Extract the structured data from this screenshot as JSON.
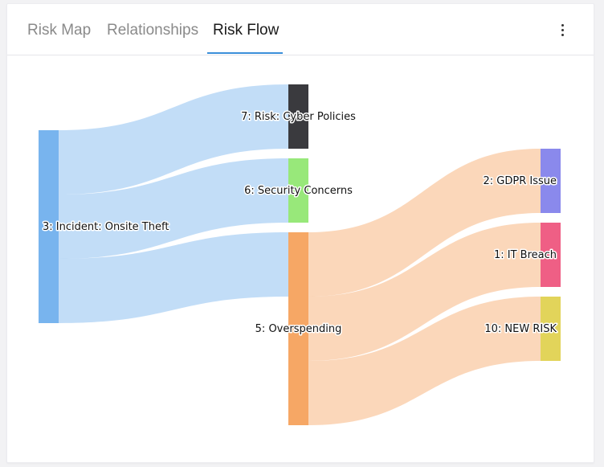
{
  "tabs": [
    {
      "label": "Risk Map"
    },
    {
      "label": "Relationships"
    },
    {
      "label": "Risk Flow"
    }
  ],
  "menu": {
    "icon": "more-vertical-icon"
  },
  "chart_data": {
    "type": "sankey",
    "nodes": [
      {
        "id": "3",
        "label": "3: Incident: Onsite Theft",
        "color": "#78b4ee"
      },
      {
        "id": "7",
        "label": "7: Risk: Cyber Policies",
        "color": "#3a3a3e"
      },
      {
        "id": "6",
        "label": "6: Security Concerns",
        "color": "#98e87a"
      },
      {
        "id": "5",
        "label": "5: Overspending",
        "color": "#f6a765"
      },
      {
        "id": "2",
        "label": "2: GDPR Issue",
        "color": "#8a89ec"
      },
      {
        "id": "1",
        "label": "1: IT Breach",
        "color": "#ef5f85"
      },
      {
        "id": "10",
        "label": "10: NEW RISK",
        "color": "#e2d45a"
      }
    ],
    "links": [
      {
        "source": "3",
        "target": "7",
        "value": 1
      },
      {
        "source": "3",
        "target": "6",
        "value": 1
      },
      {
        "source": "3",
        "target": "5",
        "value": 1
      },
      {
        "source": "5",
        "target": "2",
        "value": 1
      },
      {
        "source": "5",
        "target": "1",
        "value": 1
      },
      {
        "source": "5",
        "target": "10",
        "value": 1
      }
    ]
  }
}
